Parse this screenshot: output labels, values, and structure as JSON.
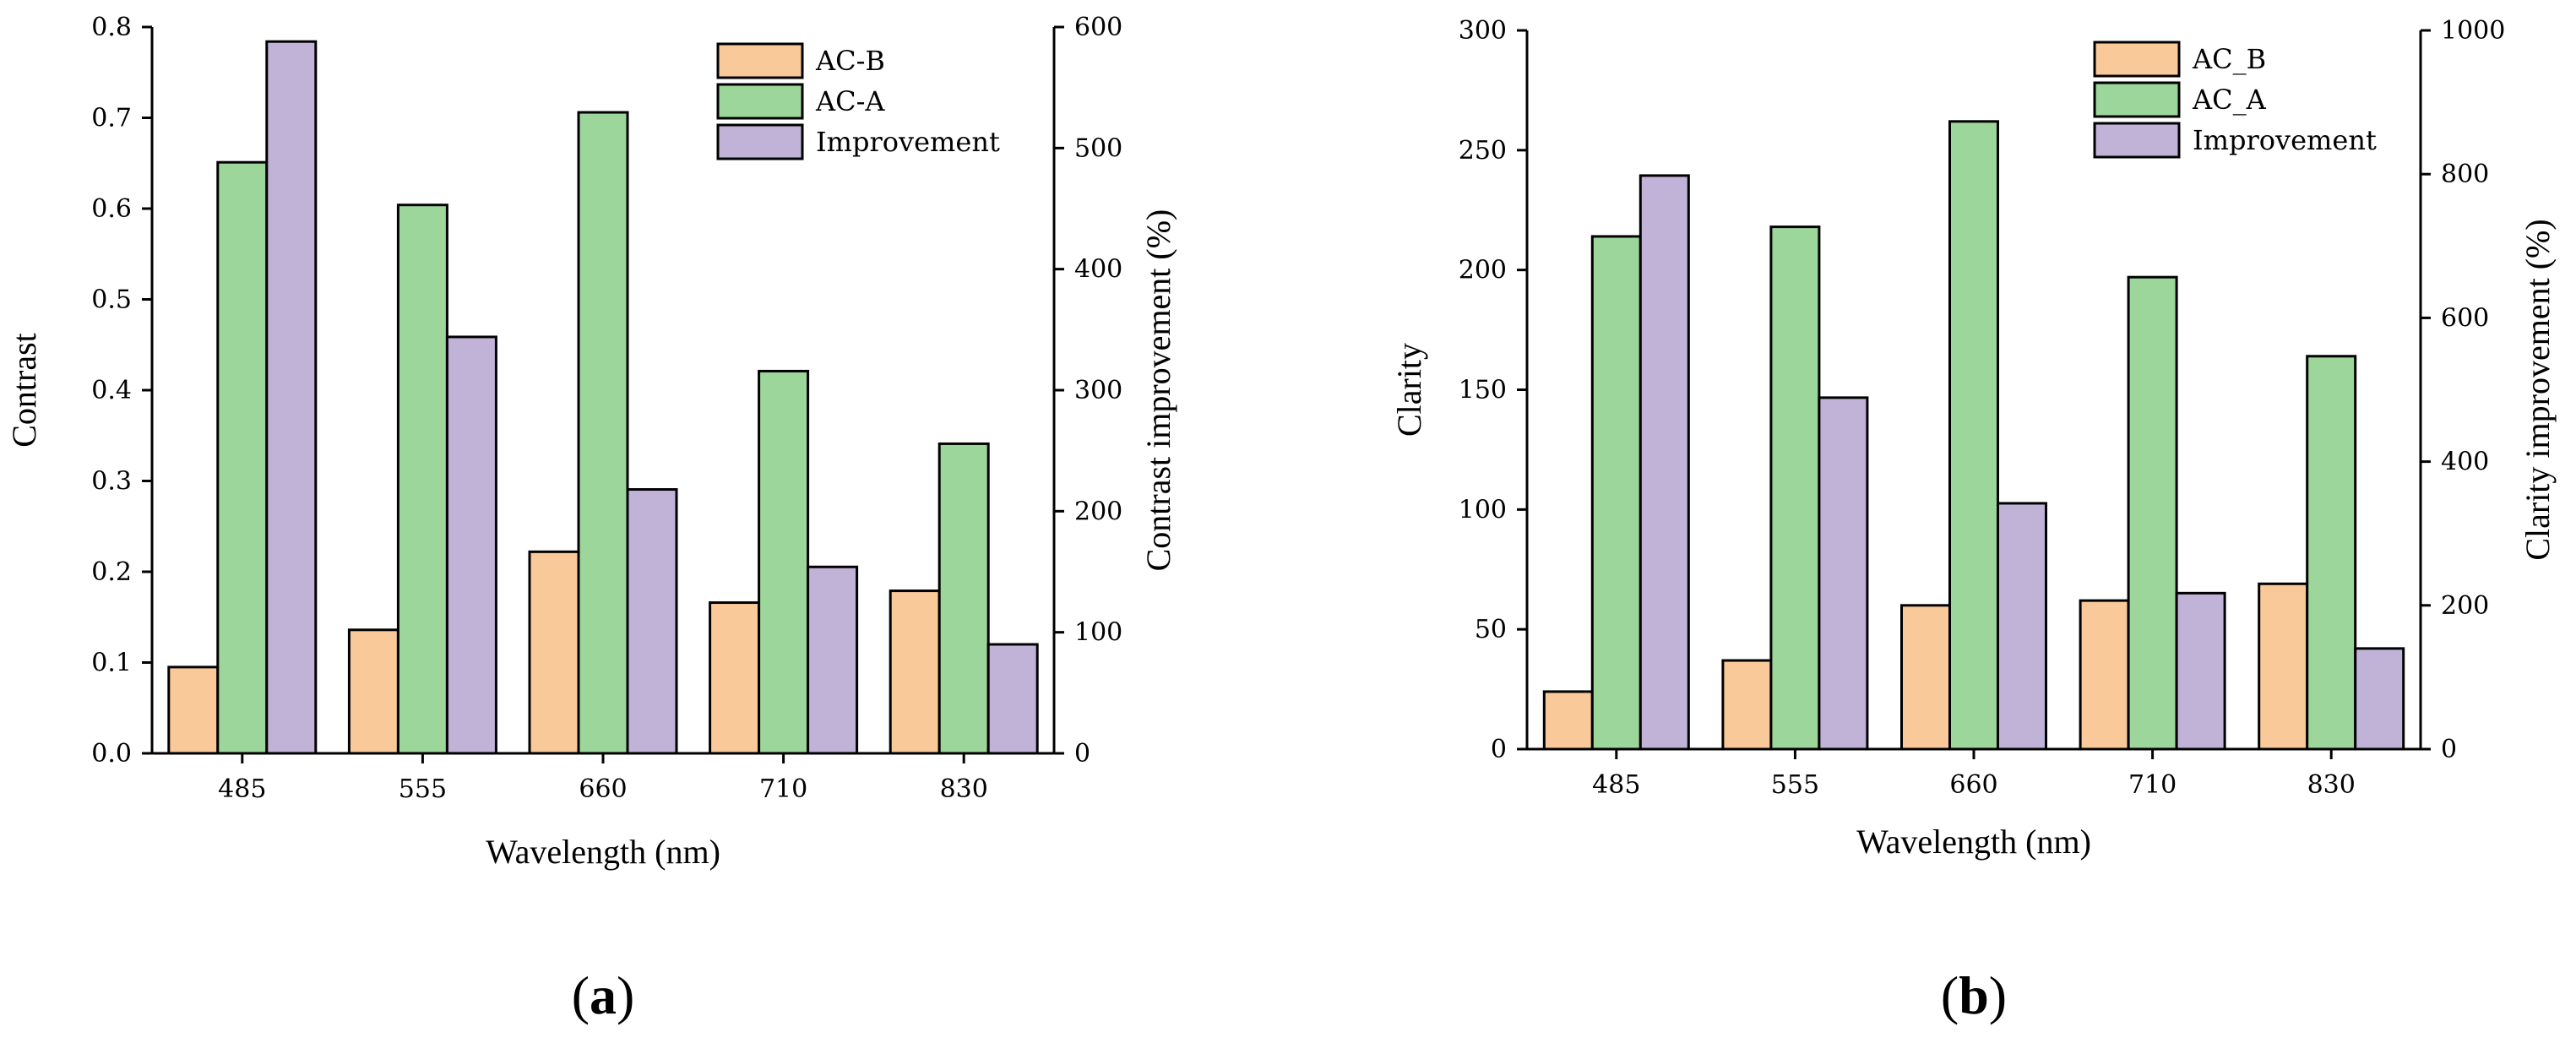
{
  "chart_data": [
    {
      "type": "bar",
      "panel_label": {
        "open": "(",
        "letter": "a",
        "close": ")"
      },
      "categories": [
        "485",
        "555",
        "660",
        "710",
        "830"
      ],
      "xlabel": "Wavelength (nm)",
      "ylabel": "Contrast",
      "ylim": [
        0,
        0.8
      ],
      "yticks": [
        "0.0",
        "0.1",
        "0.2",
        "0.3",
        "0.4",
        "0.5",
        "0.6",
        "0.7",
        "0.8"
      ],
      "y2label": "Contrast improvement (%)",
      "y2lim": [
        0,
        600
      ],
      "y2ticks": [
        "0",
        "100",
        "200",
        "300",
        "400",
        "500",
        "600"
      ],
      "legend_position": "top-right",
      "series": [
        {
          "name": "AC-B",
          "axis": "left",
          "color": "#F9C99A",
          "values": [
            0.095,
            0.136,
            0.222,
            0.166,
            0.179
          ]
        },
        {
          "name": "AC-A",
          "axis": "left",
          "color": "#9DD69A",
          "values": [
            0.651,
            0.604,
            0.706,
            0.421,
            0.341
          ]
        },
        {
          "name": "Improvement",
          "axis": "right",
          "color": "#C1B2D8",
          "values": [
            588,
            344,
            218,
            154,
            90
          ]
        }
      ]
    },
    {
      "type": "bar",
      "panel_label": {
        "open": "(",
        "letter": "b",
        "close": ")"
      },
      "categories": [
        "485",
        "555",
        "660",
        "710",
        "830"
      ],
      "xlabel": "Wavelength (nm)",
      "ylabel": "Clarity",
      "ylim": [
        0,
        300
      ],
      "yticks": [
        "0",
        "50",
        "100",
        "150",
        "200",
        "250",
        "300"
      ],
      "y2label": "Clarity improvement (%)",
      "y2lim": [
        0,
        1000
      ],
      "y2ticks": [
        "0",
        "200",
        "400",
        "600",
        "800",
        "1000"
      ],
      "legend_position": "top-right",
      "series": [
        {
          "name": "AC_B",
          "axis": "left",
          "color": "#F9C99A",
          "values": [
            24,
            37,
            60,
            62,
            69
          ]
        },
        {
          "name": "AC_A",
          "axis": "left",
          "color": "#9DD69A",
          "values": [
            214,
            218,
            262,
            197,
            164
          ]
        },
        {
          "name": "Improvement",
          "axis": "right",
          "color": "#C1B2D8",
          "values": [
            798,
            489,
            342,
            217,
            140
          ]
        }
      ]
    }
  ]
}
